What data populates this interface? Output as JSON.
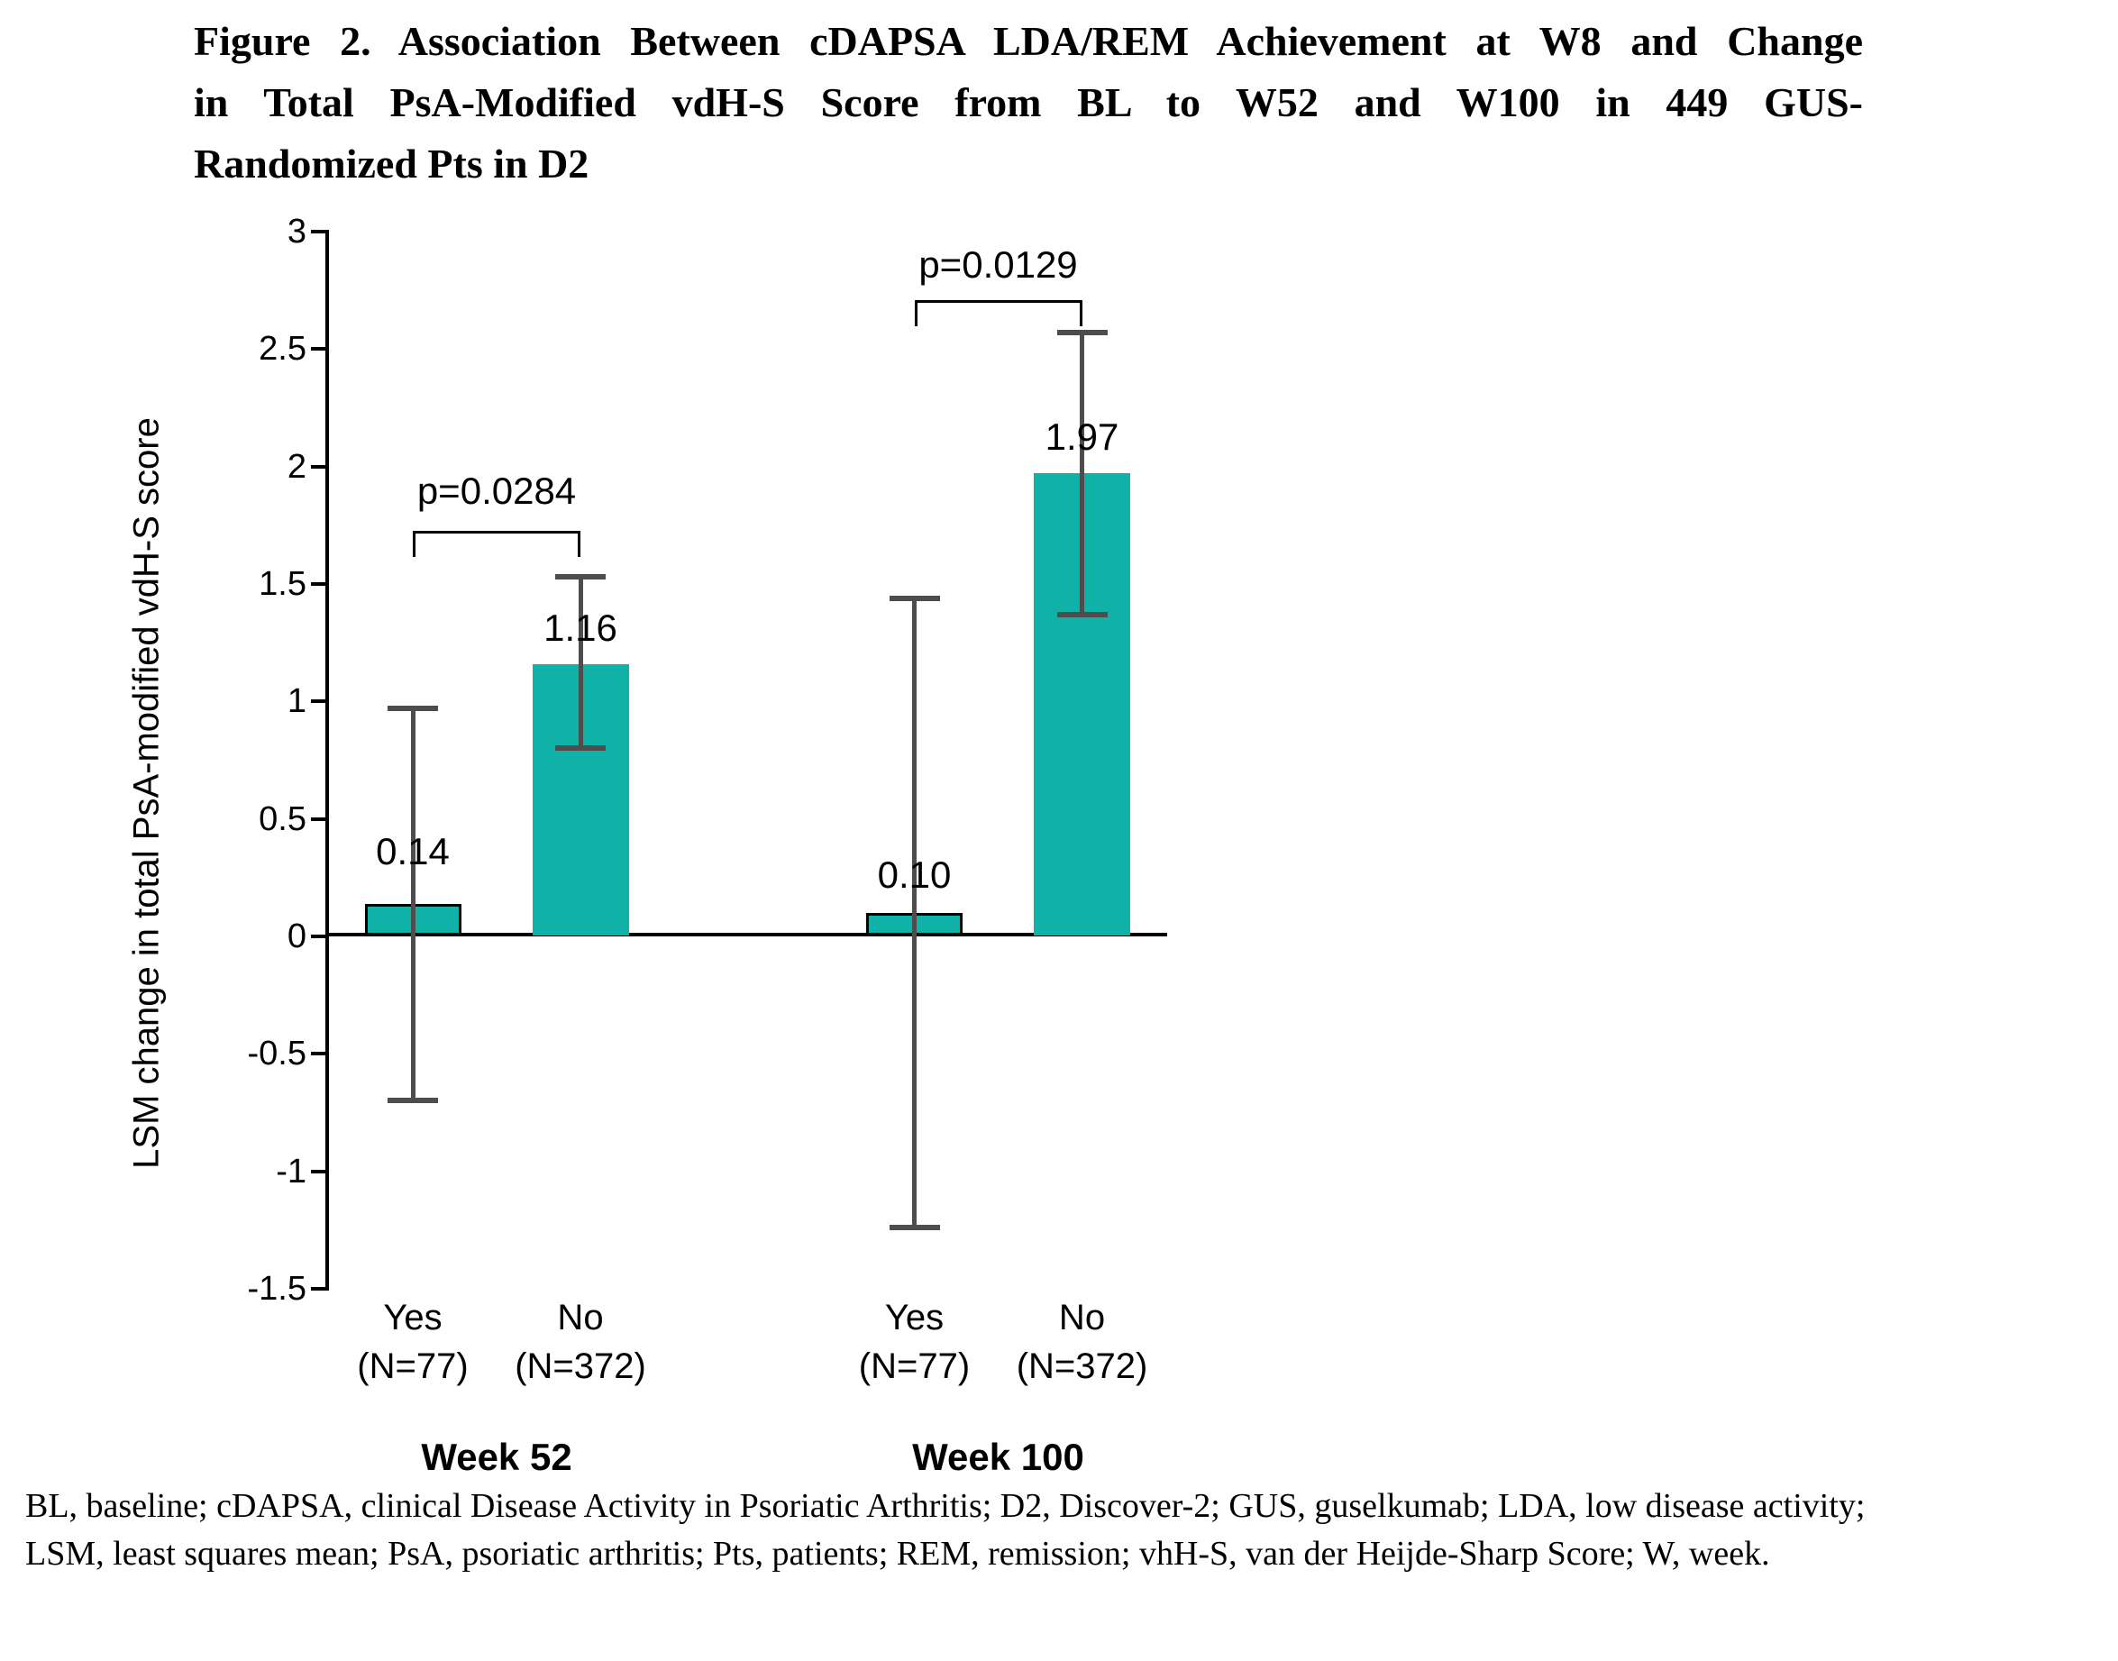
{
  "figure": {
    "title_lines": [
      "Figure 2. Association Between cDAPSA LDA/REM Achievement at W8 and Change",
      "in Total PsA-Modified vdH-S Score from BL to W52 and W100 in 449 GUS-",
      "Randomized Pts in D2"
    ],
    "footnote_lines": [
      "BL, baseline; cDAPSA, clinical Disease Activity in Psoriatic Arthritis; D2, Discover-2; GUS, guselkumab; LDA, low disease activity;",
      "LSM, least squares mean; PsA, psoriatic arthritis; Pts, patients; REM, remission; vhH-S, van der Heijde-Sharp Score; W, week."
    ]
  },
  "chart_data": {
    "type": "bar",
    "title": "Figure 2. Association Between cDAPSA LDA/REM Achievement at W8 and Change in Total PsA-Modified vdH-S Score from BL to W52 and W100 in 449 GUS-Randomized Pts in D2",
    "ylabel": "LSM change in total PsA-modified vdH-S score",
    "xlabel": "",
    "ylim": [
      -1.5,
      3
    ],
    "ytick_step": 0.5,
    "yticks": [
      "3",
      "2.5",
      "2",
      "1.5",
      "1",
      "0.5",
      "0",
      "-0.5",
      "-1",
      "-1.5"
    ],
    "grid": false,
    "legend": "none",
    "groups": [
      {
        "label": "Week 52",
        "p_value": "p=0.0284",
        "bars": [
          {
            "category": "Yes",
            "n_label": "(N=77)",
            "value": 0.14,
            "value_label": "0.14",
            "ci_low": -0.7,
            "ci_high": 0.97,
            "outlined": true
          },
          {
            "category": "No",
            "n_label": "(N=372)",
            "value": 1.16,
            "value_label": "1.16",
            "ci_low": 0.8,
            "ci_high": 1.53,
            "outlined": false
          }
        ]
      },
      {
        "label": "Week 100",
        "p_value": "p=0.0129",
        "bars": [
          {
            "category": "Yes",
            "n_label": "(N=77)",
            "value": 0.1,
            "value_label": "0.10",
            "ci_low": -1.24,
            "ci_high": 1.44,
            "outlined": true
          },
          {
            "category": "No",
            "n_label": "(N=372)",
            "value": 1.97,
            "value_label": "1.97",
            "ci_low": 1.37,
            "ci_high": 2.57,
            "outlined": false
          }
        ]
      }
    ],
    "colors": {
      "bar_fill": "#10B1A7",
      "bar_outline": "#000000",
      "error_bar": "#4d4d4d",
      "axis": "#000000",
      "text": "#000000"
    }
  }
}
